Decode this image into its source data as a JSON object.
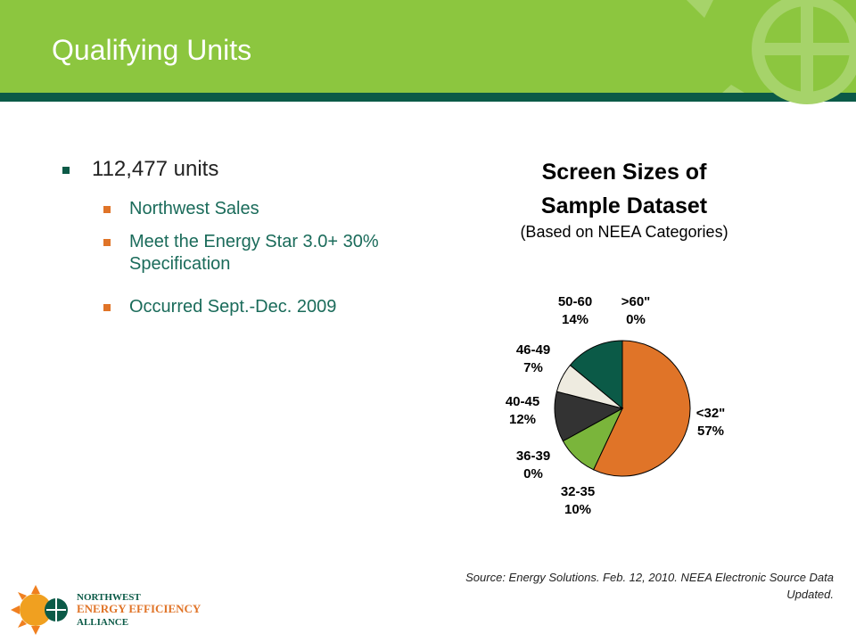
{
  "header": {
    "title": "Qualifying Units"
  },
  "bullets": {
    "main": "112,477 units",
    "sub": [
      "Northwest Sales",
      "Meet the Energy Star 3.0+ 30% Specification",
      "Occurred Sept.-Dec. 2009"
    ]
  },
  "chart_data": {
    "type": "pie",
    "title": "Screen Sizes of Sample Dataset",
    "subtitle": "(Based on NEEA Categories)",
    "categories": [
      "<32\"",
      "32-35",
      "36-39",
      "40-45",
      "46-49",
      "50-60",
      ">60\""
    ],
    "values": [
      57,
      10,
      0,
      12,
      7,
      14,
      0
    ],
    "value_labels": [
      "57%",
      "10%",
      "0%",
      "12%",
      "7%",
      "14%",
      "0%"
    ],
    "colors": [
      "#e07428",
      "#7ab53b",
      "#c8d9a0",
      "#333333",
      "#eeebe0",
      "#0b5a47",
      "#9aa0a0"
    ]
  },
  "source": "Source: Energy Solutions. Feb. 12, 2010. NEEA Electronic Source Data Updated.",
  "logo": {
    "line1": "NORTHWEST",
    "line2": "ENERGY EFFICIENCY",
    "line3": "ALLIANCE"
  }
}
